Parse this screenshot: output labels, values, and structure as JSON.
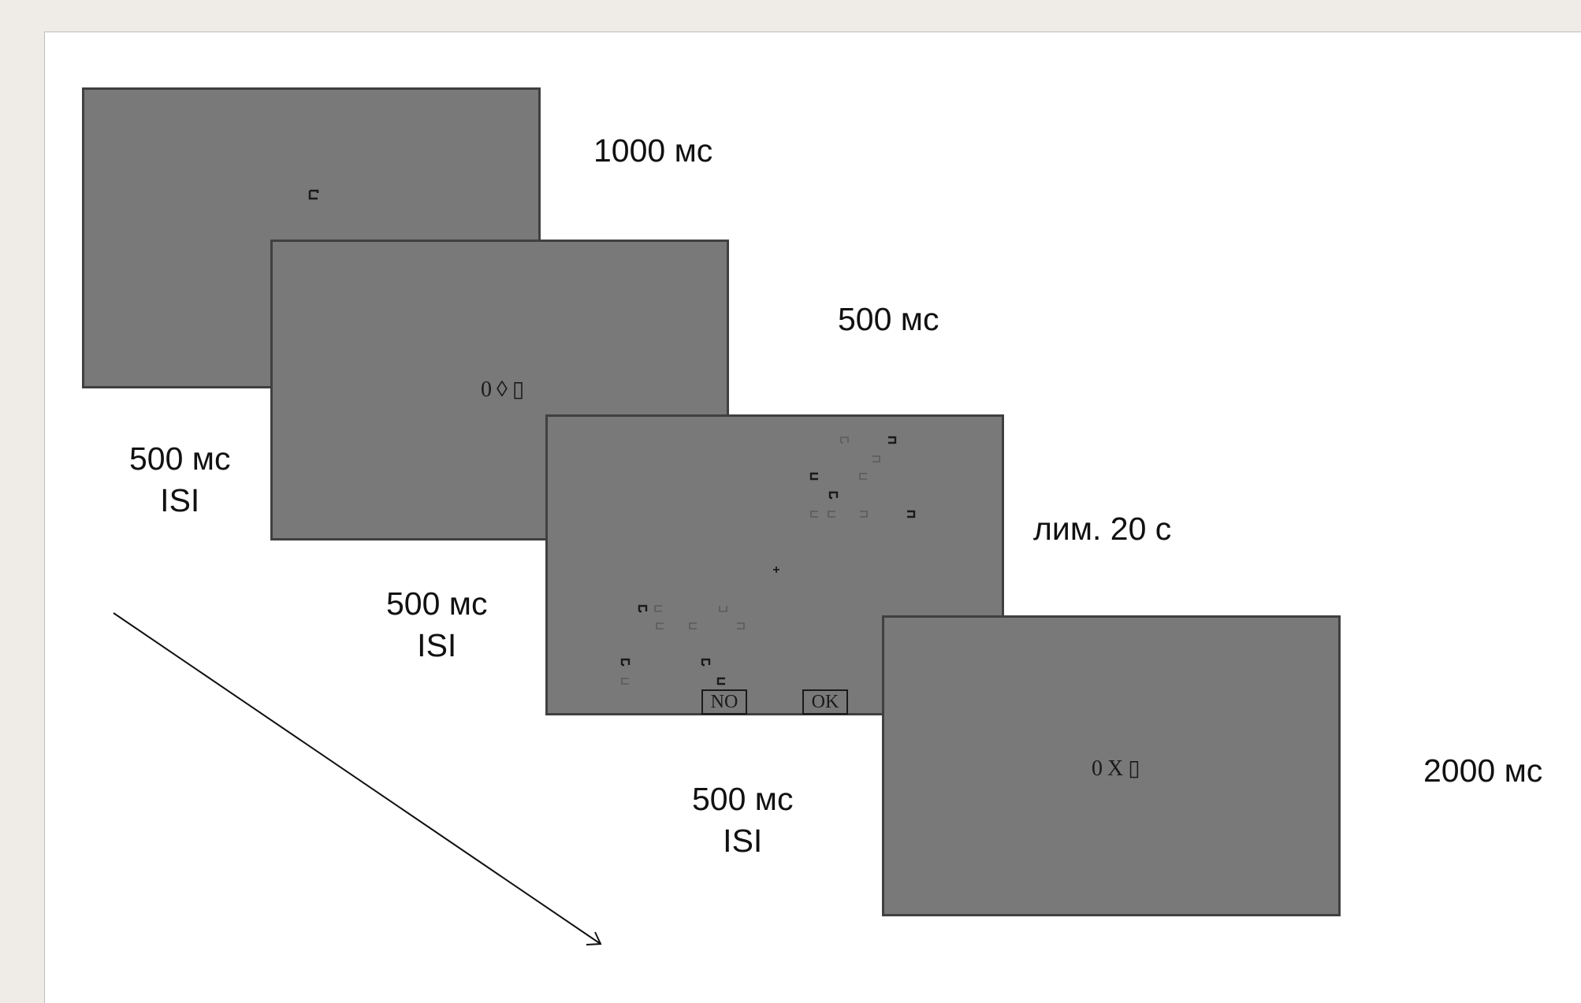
{
  "screens": [
    {
      "duration": "1000 мс"
    },
    {
      "duration": "500 мс",
      "stimulus": "0◊▯"
    },
    {
      "duration": "лим. 20 с",
      "buttons": {
        "no": "NO",
        "ok": "OK"
      }
    },
    {
      "duration": "2000 мс",
      "stimulus": "0X▯"
    }
  ],
  "isi": [
    {
      "duration": "500 мс",
      "label": "ISI"
    },
    {
      "duration": "500 мс",
      "label": "ISI"
    },
    {
      "duration": "500 мс",
      "label": "ISI"
    }
  ],
  "colors": {
    "screen_fill": "#797979",
    "screen_border": "#404040",
    "symbol_dark": "#1a1a1a",
    "symbol_light": "#5a5a5a"
  }
}
